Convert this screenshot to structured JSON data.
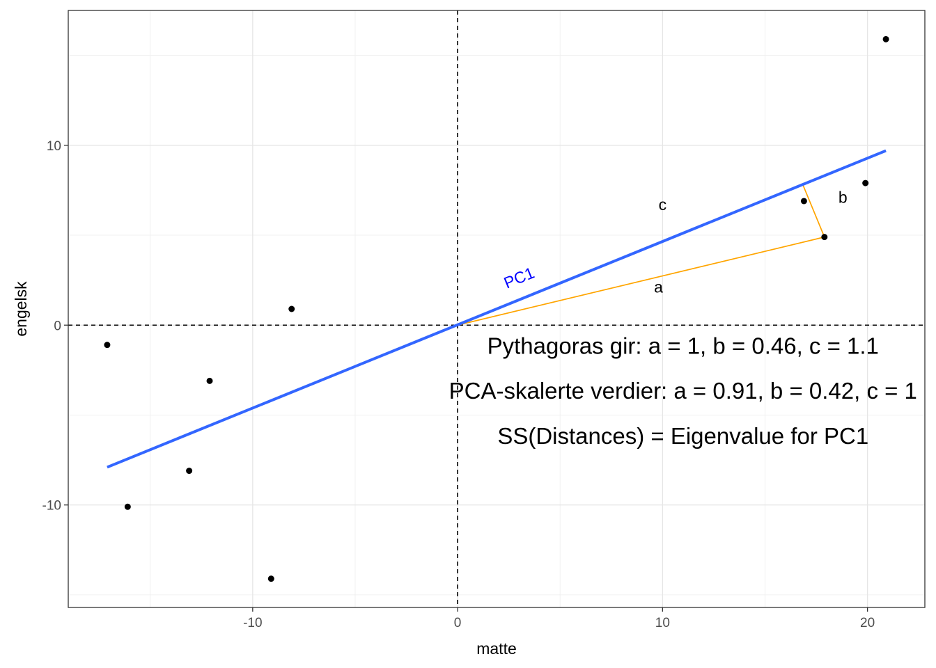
{
  "chart_data": {
    "type": "scatter",
    "xlabel": "matte",
    "ylabel": "engelsk",
    "xlim": [
      -19,
      22.8
    ],
    "ylim": [
      -15.7,
      17.5
    ],
    "x_ticks": [
      -10,
      0,
      10,
      20
    ],
    "y_ticks": [
      -10,
      0,
      10
    ],
    "x_minor_grid": [
      -15,
      -5,
      5,
      15
    ],
    "y_minor_grid": [
      -15,
      -5,
      5,
      15
    ],
    "grid": true,
    "points": [
      {
        "x": -17.1,
        "y": -1.1
      },
      {
        "x": -16.1,
        "y": -10.1
      },
      {
        "x": -13.1,
        "y": -8.1
      },
      {
        "x": -12.1,
        "y": -3.1
      },
      {
        "x": -9.1,
        "y": -14.1
      },
      {
        "x": -8.1,
        "y": 0.9
      },
      {
        "x": 16.9,
        "y": 6.9
      },
      {
        "x": 17.9,
        "y": 4.9
      },
      {
        "x": 19.9,
        "y": 7.9
      },
      {
        "x": 20.9,
        "y": 15.9
      }
    ],
    "pc1_line": {
      "x": [
        -17.1,
        20.9
      ],
      "y": [
        -7.9,
        9.7
      ],
      "label": "PC1",
      "color": "#3366ff",
      "label_color": "#0000ff"
    },
    "segments": [
      {
        "name": "a",
        "x1": 0,
        "y1": 0,
        "x2": 17.9,
        "y2": 4.9
      },
      {
        "name": "b",
        "x1": 17.9,
        "y1": 4.9,
        "x2": 16.85,
        "y2": 7.8
      }
    ],
    "segment_color": "#ffa500",
    "segment_labels": [
      {
        "text": "a",
        "x": 9.8,
        "y": 1.8
      },
      {
        "text": "b",
        "x": 18.8,
        "y": 6.8
      },
      {
        "text": "c",
        "x": 10.0,
        "y": 6.4
      }
    ],
    "reference_lines": {
      "h": 0,
      "v": 0
    },
    "annotations": [
      {
        "text": "Pythagoras gir: a = 1, b = 0.46, c = 1.1",
        "x": 11.0,
        "y": -1.6
      },
      {
        "text": "PCA-skalerte verdier: a = 0.91, b = 0.42, c = 1",
        "x": 11.0,
        "y": -4.1
      },
      {
        "text": "SS(Distances) = Eigenvalue for PC1",
        "x": 11.0,
        "y": -6.6
      }
    ]
  }
}
